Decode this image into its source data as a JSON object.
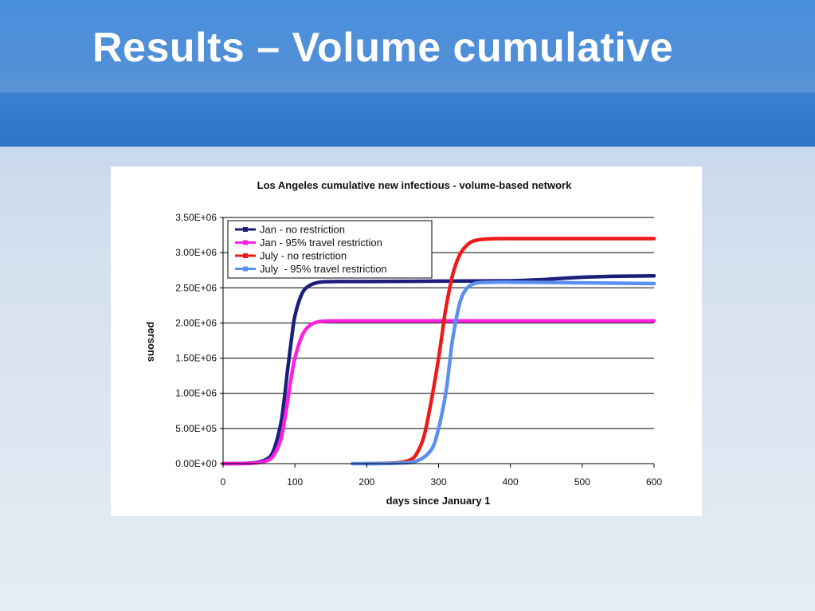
{
  "slide": {
    "title": "Results – Volume cumulative"
  },
  "colors": {
    "title_band": "#4a8fdc",
    "band_strip": "#2f73c4"
  },
  "chart_data": {
    "type": "line",
    "title": "Los Angeles cumulative new infectious - volume-based network",
    "xlabel": "days since January 1",
    "ylabel": "persons",
    "xlim": [
      0,
      600
    ],
    "ylim": [
      0,
      3500000
    ],
    "x_ticks": [
      0,
      100,
      200,
      300,
      400,
      500,
      600
    ],
    "y_ticks": [
      0,
      500000,
      1000000,
      1500000,
      2000000,
      2500000,
      3000000,
      3500000
    ],
    "y_tick_labels": [
      "0.00E+00",
      "5.00E+05",
      "1.00E+06",
      "1.50E+06",
      "2.00E+06",
      "2.50E+06",
      "3.00E+06",
      "3.50E+06"
    ],
    "grid": "horizontal",
    "legend_position": "top-left",
    "series": [
      {
        "name": "Jan - no restriction",
        "color": "#1b1f7a",
        "x": [
          0,
          40,
          60,
          70,
          80,
          85,
          90,
          95,
          100,
          110,
          120,
          130,
          140,
          160,
          200,
          300,
          400,
          450,
          500,
          550,
          600
        ],
        "y": [
          0,
          8000,
          60000,
          180000,
          550000,
          900000,
          1350000,
          1750000,
          2100000,
          2420000,
          2530000,
          2570000,
          2585000,
          2590000,
          2590000,
          2595000,
          2600000,
          2620000,
          2650000,
          2665000,
          2670000
        ]
      },
      {
        "name": "Jan - 95% travel restriction",
        "color": "#ff1fe0",
        "x": [
          0,
          40,
          60,
          70,
          80,
          85,
          90,
          95,
          100,
          110,
          120,
          130,
          140,
          160,
          200,
          300,
          400,
          500,
          600
        ],
        "y": [
          0,
          5000,
          40000,
          110000,
          330000,
          580000,
          900000,
          1230000,
          1500000,
          1820000,
          1960000,
          2010000,
          2025000,
          2030000,
          2030000,
          2030000,
          2030000,
          2030000,
          2030000
        ]
      },
      {
        "name": "July - no restriction",
        "color": "#ee1a1a",
        "x": [
          200,
          240,
          260,
          270,
          280,
          290,
          300,
          305,
          310,
          320,
          330,
          340,
          350,
          370,
          400,
          500,
          600
        ],
        "y": [
          0,
          10000,
          50000,
          150000,
          400000,
          900000,
          1500000,
          1850000,
          2200000,
          2700000,
          2980000,
          3110000,
          3170000,
          3195000,
          3200000,
          3200000,
          3200000
        ]
      },
      {
        "name": "July  - 95% travel restriction",
        "color": "#5b8ff0",
        "x": [
          180,
          240,
          270,
          290,
          300,
          310,
          315,
          320,
          330,
          340,
          350,
          360,
          380,
          400,
          500,
          600
        ],
        "y": [
          0,
          5000,
          40000,
          200000,
          500000,
          1000000,
          1400000,
          1800000,
          2300000,
          2500000,
          2560000,
          2575000,
          2580000,
          2580000,
          2570000,
          2560000
        ]
      }
    ]
  }
}
